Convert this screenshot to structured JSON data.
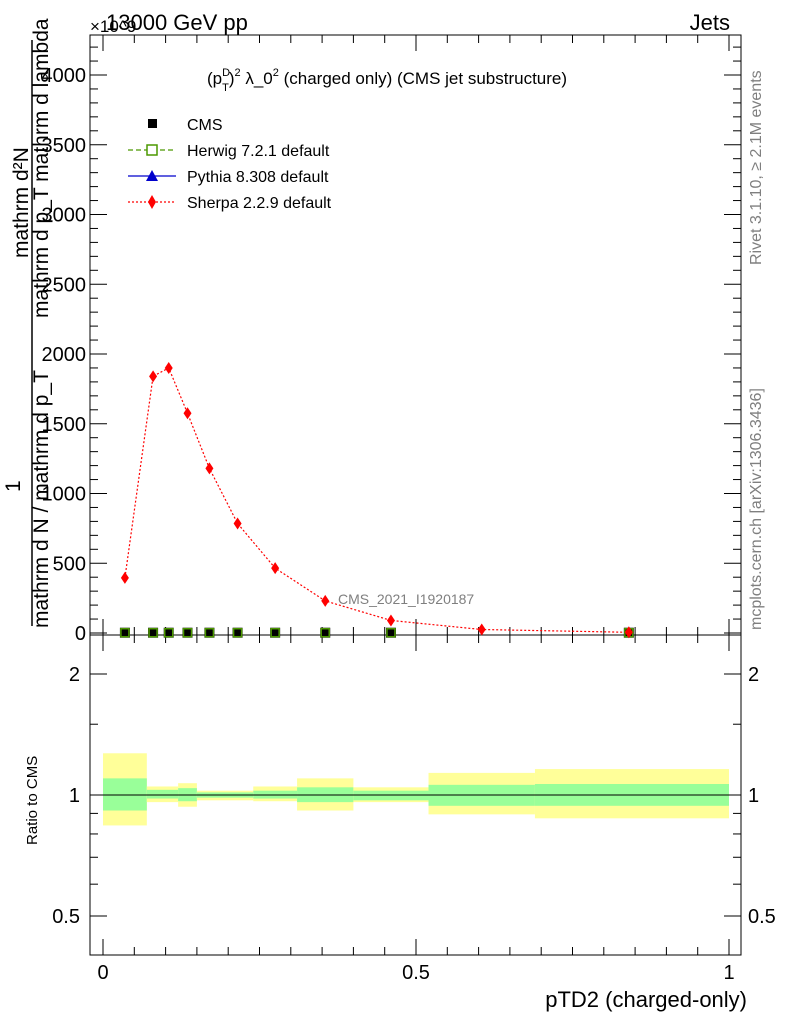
{
  "header": {
    "left": "13000 GeV pp",
    "right": "Jets",
    "multiplier": "×10^9"
  },
  "side": {
    "rivet": "Rivet 3.1.10, ≥ 2.1M events",
    "mcplots": "mcplots.cern.ch [arXiv:1306.3436]"
  },
  "chart_data": [
    {
      "type": "scatter",
      "title": "(p_T^D)^2 λ_0^2 (charged only) (CMS jet substructure)",
      "title_parts": {
        "a": "(p",
        "sup1": "D",
        "sub1": "T",
        "b": ")",
        "sup2": "2",
        "c": " λ_0",
        "sup3": "2",
        "d": " (charged only) (CMS jet substructure)"
      },
      "xlabel": "pTD2 (charged-only)",
      "ylabel": {
        "numerator": "mathrm d²N",
        "line2": "mathrm d p_T mathrm d lambda",
        "line3": "mathrm d p_T mathrm d lambda",
        "denominator": "mathrm d N / mathrm d p_T",
        "one": "1"
      },
      "xlim": [
        0,
        1
      ],
      "ylim": [
        0,
        4300
      ],
      "yticks": [
        0,
        500,
        1000,
        1500,
        2000,
        2500,
        3000,
        3500,
        4000
      ],
      "ytick_labels": [
        "0",
        "500",
        "1000",
        "1500",
        "2000",
        "2500",
        "3000",
        "3500",
        "4000"
      ],
      "analysis_label": "CMS_2021_I1920187",
      "legend_position": "top-left",
      "series": [
        {
          "name": "CMS",
          "marker": "filled-square",
          "color": "#000000",
          "x": [
            0.035,
            0.08,
            0.105,
            0.135,
            0.17,
            0.215,
            0.275,
            0.355,
            0.46,
            0.84
          ],
          "y": [
            2,
            2,
            2,
            2,
            2,
            2,
            2,
            2,
            2,
            2
          ]
        },
        {
          "name": "Herwig 7.2.1 default",
          "marker": "open-square",
          "color": "#4c9900",
          "x": [
            0.035,
            0.08,
            0.105,
            0.135,
            0.17,
            0.215,
            0.275,
            0.355,
            0.46,
            0.84
          ],
          "y": [
            2,
            2,
            2,
            2,
            2,
            2,
            2,
            2,
            2,
            2
          ]
        },
        {
          "name": "Pythia 8.308 default",
          "marker": "triangle",
          "color": "#0000cc",
          "x": [
            0.035,
            0.08,
            0.105,
            0.135,
            0.17,
            0.215,
            0.275,
            0.355,
            0.46,
            0.84
          ],
          "y": [
            2,
            2,
            2,
            2,
            2,
            2,
            2,
            2,
            2,
            2
          ]
        },
        {
          "name": "Sherpa 2.2.9 default",
          "marker": "diamond",
          "color": "#ff0000",
          "x": [
            0.035,
            0.08,
            0.105,
            0.135,
            0.17,
            0.215,
            0.275,
            0.355,
            0.46,
            0.605,
            0.84
          ],
          "y": [
            395,
            1840,
            1900,
            1575,
            1180,
            785,
            465,
            230,
            90,
            25,
            5
          ]
        }
      ]
    },
    {
      "type": "area",
      "ylabel": "Ratio to CMS",
      "xlim": [
        0,
        1
      ],
      "ylim": [
        0.4,
        2.3
      ],
      "log_y": true,
      "yticks": [
        0.5,
        1,
        2
      ],
      "ytick_labels": [
        "0.5",
        "1",
        "2"
      ],
      "xticks": [
        0,
        0.5,
        1
      ],
      "xtick_labels": [
        "0",
        "0.5",
        "1"
      ],
      "bins": [
        {
          "x0": 0.0,
          "x1": 0.07,
          "inner": [
            0.915,
            1.1
          ],
          "outer": [
            0.84,
            1.27
          ]
        },
        {
          "x0": 0.07,
          "x1": 0.12,
          "inner": [
            0.98,
            1.03
          ],
          "outer": [
            0.96,
            1.05
          ]
        },
        {
          "x0": 0.12,
          "x1": 0.15,
          "inner": [
            0.965,
            1.04
          ],
          "outer": [
            0.935,
            1.07
          ]
        },
        {
          "x0": 0.15,
          "x1": 0.24,
          "inner": [
            0.985,
            1.015
          ],
          "outer": [
            0.97,
            1.025
          ]
        },
        {
          "x0": 0.24,
          "x1": 0.31,
          "inner": [
            0.98,
            1.025
          ],
          "outer": [
            0.965,
            1.05
          ]
        },
        {
          "x0": 0.31,
          "x1": 0.4,
          "inner": [
            0.96,
            1.045
          ],
          "outer": [
            0.915,
            1.1
          ]
        },
        {
          "x0": 0.4,
          "x1": 0.52,
          "inner": [
            0.97,
            1.025
          ],
          "outer": [
            0.96,
            1.045
          ]
        },
        {
          "x0": 0.52,
          "x1": 0.69,
          "inner": [
            0.94,
            1.06
          ],
          "outer": [
            0.895,
            1.135
          ]
        },
        {
          "x0": 0.69,
          "x1": 1.0,
          "inner": [
            0.94,
            1.065
          ],
          "outer": [
            0.875,
            1.16
          ]
        }
      ],
      "colors": {
        "inner": "#99ff99",
        "outer": "#ffff99"
      }
    }
  ]
}
